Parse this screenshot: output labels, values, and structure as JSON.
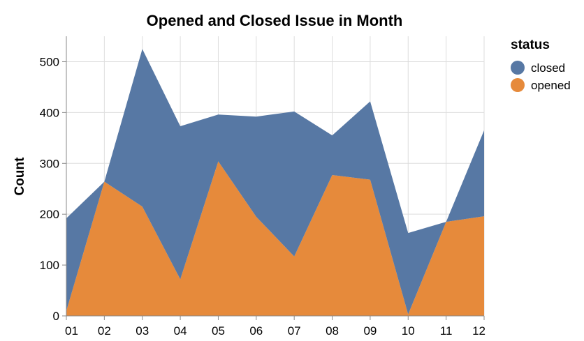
{
  "chart_data": {
    "type": "area",
    "stacked": true,
    "title": "Opened and Closed Issue in Month",
    "xlabel": "",
    "ylabel": "Count",
    "categories": [
      "01",
      "02",
      "03",
      "04",
      "05",
      "06",
      "07",
      "08",
      "09",
      "10",
      "11",
      "12"
    ],
    "ylim": [
      0,
      550
    ],
    "yticks": [
      0,
      100,
      200,
      300,
      400,
      500
    ],
    "grid": true,
    "legend": {
      "title": "status",
      "placement": "top-right",
      "entries": [
        "closed",
        "opened"
      ]
    },
    "series": [
      {
        "name": "opened",
        "color": "#e68a3b",
        "values": [
          10,
          264,
          215,
          72,
          304,
          195,
          117,
          277,
          268,
          3,
          185,
          196
        ]
      },
      {
        "name": "closed",
        "color": "#5778a4",
        "values": [
          182,
          0,
          310,
          301,
          92,
          197,
          285,
          78,
          154,
          160,
          0,
          169
        ]
      }
    ]
  }
}
